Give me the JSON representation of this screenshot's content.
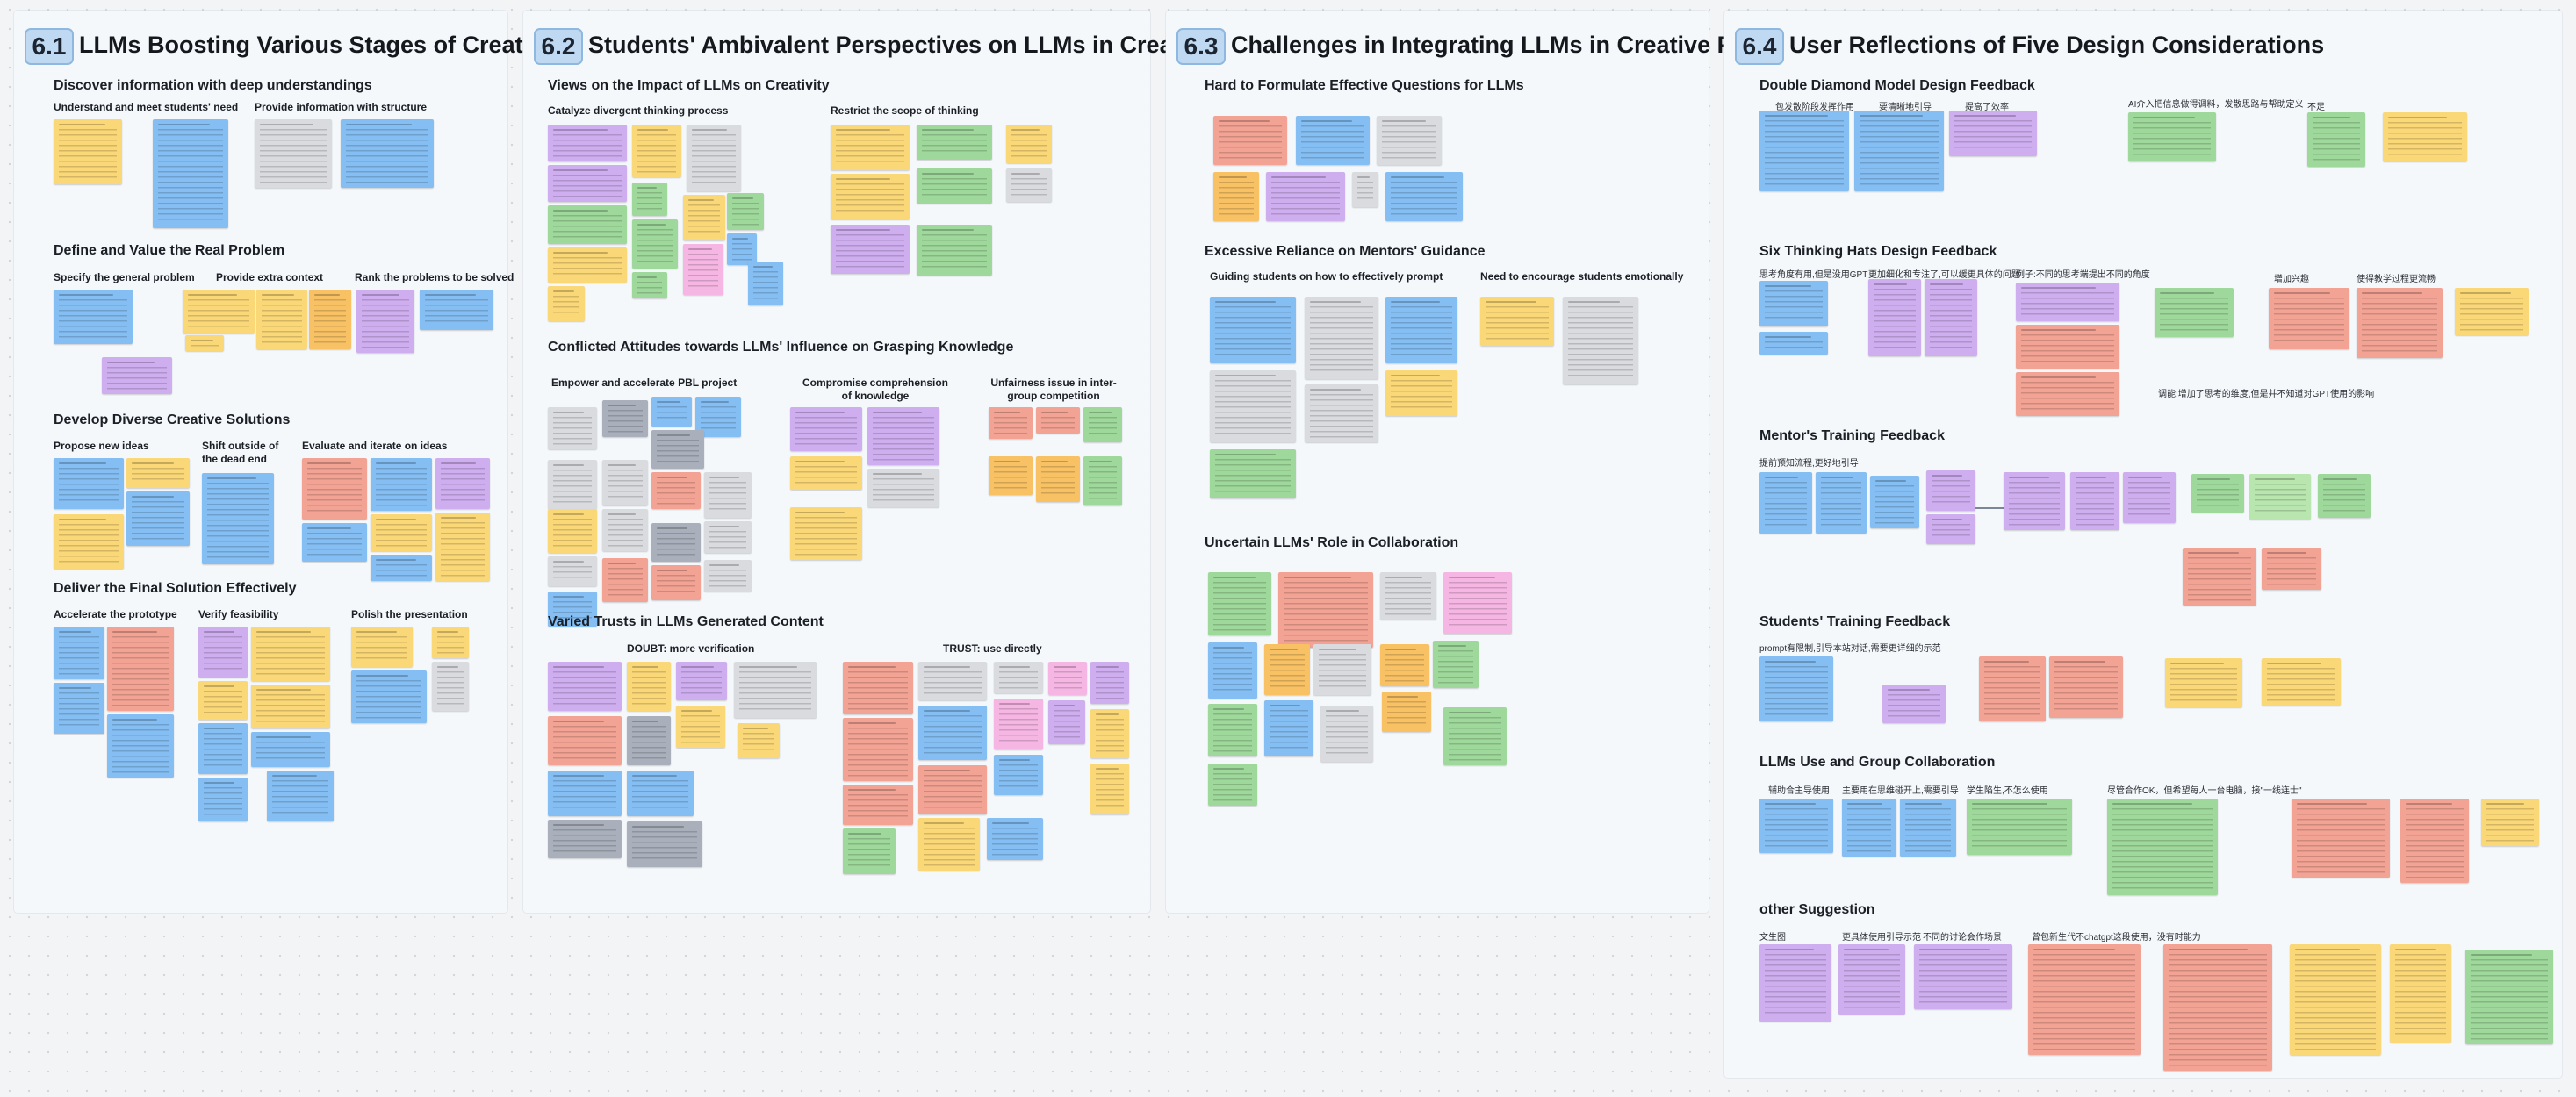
{
  "sections": [
    {
      "num": "6.1",
      "title": "LLMs Boosting Various Stages of Creative PBL",
      "headings": {
        "discover": "Discover information with deep understandings",
        "define": "Define and Value the Real Problem",
        "develop": "Develop Diverse Creative Solutions",
        "deliver": "Deliver the Final Solution Effectively"
      },
      "subheadings": {
        "understand": "Understand and meet students' need",
        "provide_info": "Provide information with structure",
        "specify": "Specify the general problem",
        "extra_context": "Provide extra context",
        "rank": "Rank the problems to be solved",
        "propose": "Propose new ideas",
        "shift": "Shift outside of the dead end",
        "evaluate": "Evaluate and iterate on ideas",
        "accelerate": "Accelerate the prototype",
        "verify": "Verify feasibility",
        "polish": "Polish the presentation"
      }
    },
    {
      "num": "6.2",
      "title": "Students' Ambivalent Perspectives on LLMs in Creativity",
      "headings": {
        "views": "Views on the Impact of LLMs on Creativity",
        "conflicted": "Conflicted Attitudes towards LLMs' Influence on Grasping Knowledge",
        "varied": "Varied Trusts in LLMs Generated Content"
      },
      "subheadings": {
        "catalyze": "Catalyze divergent thinking process",
        "restrict": "Restrict the scope of thinking",
        "empower": "Empower and accelerate PBL project",
        "compromise": "Compromise comprehension of knowledge",
        "unfairness": "Unfairness issue in inter-group competition",
        "doubt": "DOUBT: more verification",
        "trust": "TRUST: use directly"
      }
    },
    {
      "num": "6.3",
      "title": "Challenges in Integrating LLMs in Creative  PBL",
      "headings": {
        "hard": "Hard to Formulate Effective Questions for LLMs",
        "excessive": "Excessive Reliance on Mentors' Guidance",
        "uncertain": "Uncertain LLMs' Role in Collaboration"
      },
      "subheadings": {
        "guiding": "Guiding students on how to effectively prompt",
        "encourage": "Need to encourage students emotionally"
      }
    },
    {
      "num": "6.4",
      "title": "User Reflections of Five Design Considerations",
      "headings": {
        "double_diamond": "Double Diamond Model Design Feedback",
        "six_hats": "Six Thinking Hats Design Feedback",
        "mentor": "Mentor's Training Feedback",
        "students": "Students' Training Feedback",
        "group": "LLMs Use and Group Collaboration",
        "other": "other Suggestion"
      },
      "labels": {
        "dd1": "包发散阶段发挥作用",
        "dd2": "要清晰地引导",
        "dd3": "提高了效率",
        "dd4": "AI介入把信息做得调料，发散思路与帮助定义",
        "dd5": "不足",
        "sh1": "思考角度有用,但是没用GPT",
        "sh2": "更加细化和专注了,可以缓更具体的问题",
        "sh3": "例子:不同的思考端提出不同的角度",
        "sh4": "增加兴趣",
        "sh5": "使得教学过程更流畅",
        "sh6": "调能:增加了思考的维度,但是并不知道对GPT使用的影响",
        "mt1": "提前预知流程,更好地引导",
        "st1": "prompt有限制,引导本站对话,需要更详细的示范",
        "gc1": "辅助合主导使用",
        "gc2": "主要用在思维碰开上,需要引导",
        "gc3": "学生陷生,不怎么使用",
        "gc4": "尽管合作OK，但希望每人一台电脑，接\"一线连士\"",
        "os1": "文生图",
        "os2": "更具体使用引导示范",
        "os3": "不同的讨论会作场景",
        "os4": "曾包新生代不chatgpt这段使用，没有时能力"
      }
    }
  ]
}
